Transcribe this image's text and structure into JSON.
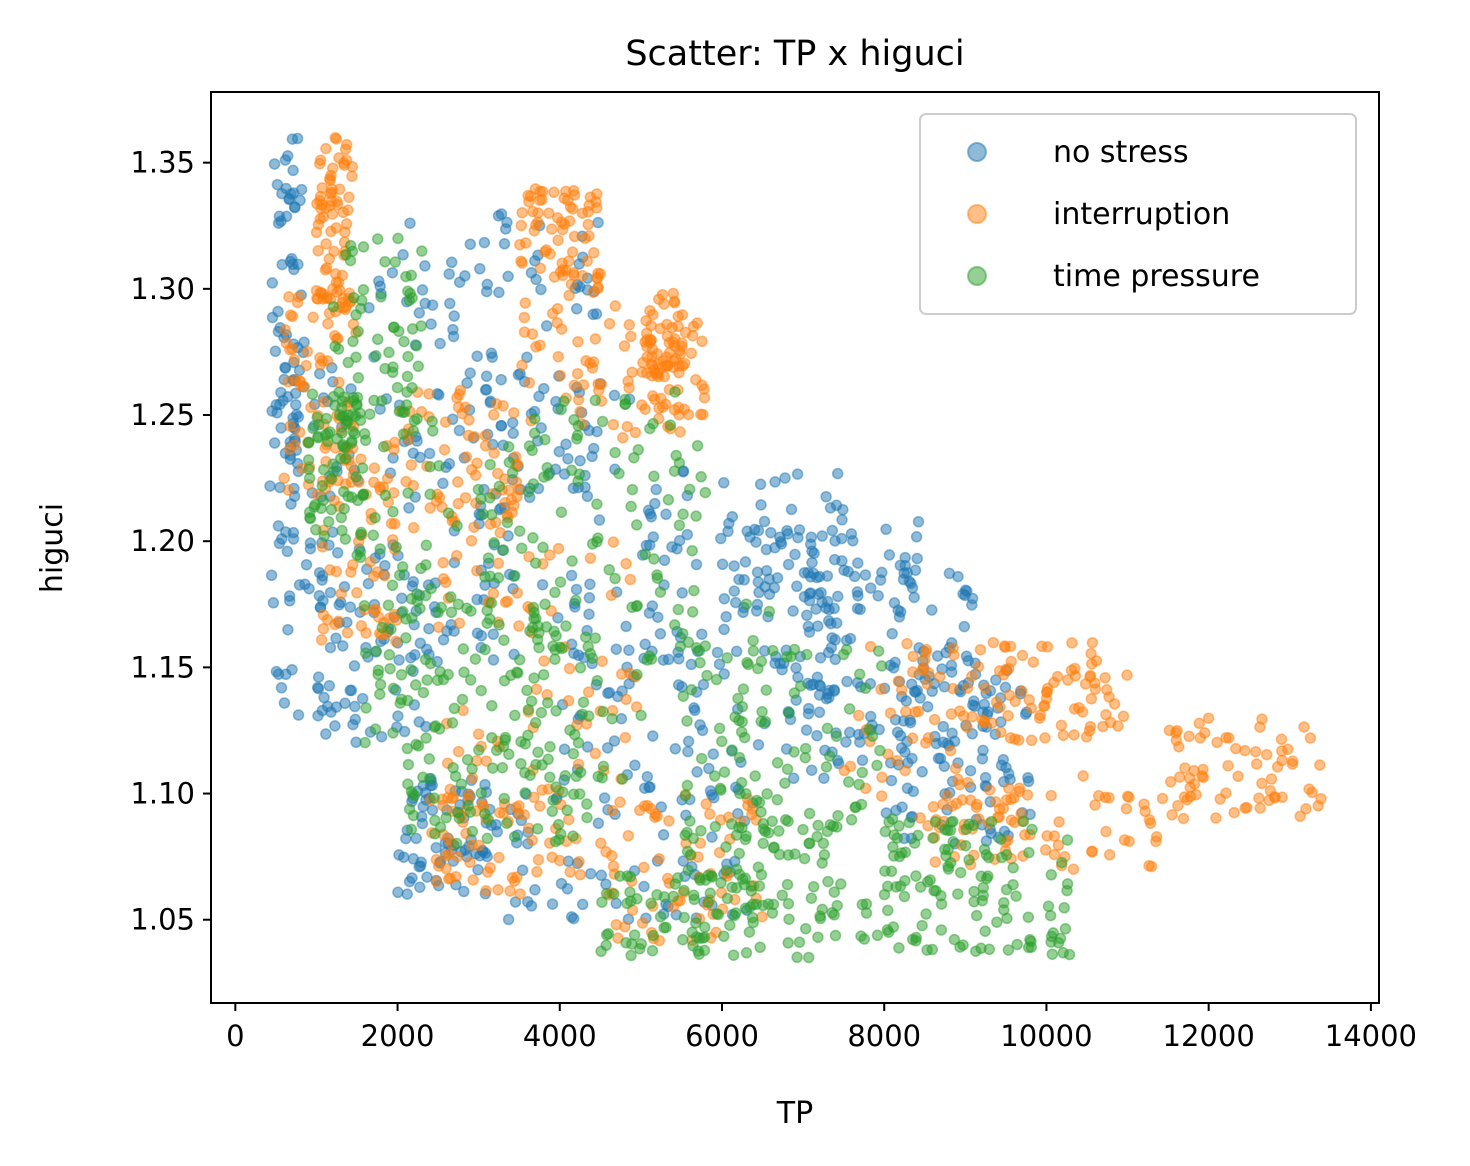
{
  "chart_data": {
    "type": "scatter",
    "title": "Scatter: TP x higuci",
    "xlabel": "TP",
    "ylabel": "higuci",
    "xlim": [
      -300,
      14100
    ],
    "ylim": [
      1.017,
      1.378
    ],
    "x_ticks": [
      0,
      2000,
      4000,
      6000,
      8000,
      10000,
      12000,
      14000
    ],
    "x_tick_labels": [
      "0",
      "2000",
      "4000",
      "6000",
      "8000",
      "10000",
      "12000",
      "14000"
    ],
    "y_ticks": [
      1.05,
      1.1,
      1.15,
      1.2,
      1.25,
      1.3,
      1.35
    ],
    "y_tick_labels": [
      "1.05",
      "1.10",
      "1.15",
      "1.20",
      "1.25",
      "1.30",
      "1.35"
    ],
    "grid": false,
    "legend_position": "top-right",
    "legend": [
      "no stress",
      "interruption",
      "time pressure"
    ],
    "series": [
      {
        "name": "no stress",
        "color": "#1f77b4",
        "regions": [
          {
            "x": [
              450,
              850
            ],
            "y": [
              1.2,
              1.36
            ]
          },
          {
            "x": [
              400,
              1500
            ],
            "y": [
              1.13,
              1.27
            ]
          },
          {
            "x": [
              1000,
              2500
            ],
            "y": [
              1.12,
              1.2
            ]
          },
          {
            "x": [
              1500,
              3500
            ],
            "y": [
              1.16,
              1.33
            ]
          },
          {
            "x": [
              2000,
              4500
            ],
            "y": [
              1.22,
              1.33
            ]
          },
          {
            "x": [
              3000,
              5500
            ],
            "y": [
              1.15,
              1.27
            ]
          },
          {
            "x": [
              5000,
              7500
            ],
            "y": [
              1.15,
              1.23
            ]
          },
          {
            "x": [
              6000,
              8500
            ],
            "y": [
              1.17,
              1.21
            ]
          },
          {
            "x": [
              7000,
              9200
            ],
            "y": [
              1.14,
              1.19
            ]
          },
          {
            "x": [
              8000,
              9800
            ],
            "y": [
              1.08,
              1.15
            ]
          },
          {
            "x": [
              2000,
              3100
            ],
            "y": [
              1.06,
              1.11
            ]
          },
          {
            "x": [
              3000,
              6500
            ],
            "y": [
              1.05,
              1.1
            ]
          },
          {
            "x": [
              4000,
              7000
            ],
            "y": [
              1.1,
              1.16
            ]
          },
          {
            "x": [
              7000,
              9500
            ],
            "y": [
              1.1,
              1.15
            ]
          }
        ]
      },
      {
        "name": "interruption",
        "color": "#ff7f0e",
        "regions": [
          {
            "x": [
              1000,
              1450
            ],
            "y": [
              1.29,
              1.36
            ]
          },
          {
            "x": [
              600,
              1500
            ],
            "y": [
              1.22,
              1.3
            ]
          },
          {
            "x": [
              1000,
              2000
            ],
            "y": [
              1.16,
              1.24
            ]
          },
          {
            "x": [
              2000,
              3500
            ],
            "y": [
              1.2,
              1.26
            ]
          },
          {
            "x": [
              3500,
              5500
            ],
            "y": [
              1.24,
              1.3
            ]
          },
          {
            "x": [
              3500,
              4500
            ],
            "y": [
              1.3,
              1.34
            ]
          },
          {
            "x": [
              5000,
              5800
            ],
            "y": [
              1.25,
              1.29
            ]
          },
          {
            "x": [
              2500,
              5000
            ],
            "y": [
              1.1,
              1.2
            ]
          },
          {
            "x": [
              2300,
              4300
            ],
            "y": [
              1.06,
              1.1
            ]
          },
          {
            "x": [
              4500,
              6500
            ],
            "y": [
              1.04,
              1.1
            ]
          },
          {
            "x": [
              7500,
              11000
            ],
            "y": [
              1.09,
              1.16
            ]
          },
          {
            "x": [
              8200,
              10800
            ],
            "y": [
              1.12,
              1.16
            ]
          },
          {
            "x": [
              8500,
              11500
            ],
            "y": [
              1.07,
              1.1
            ]
          },
          {
            "x": [
              11500,
              13400
            ],
            "y": [
              1.09,
              1.13
            ]
          }
        ]
      },
      {
        "name": "time pressure",
        "color": "#2ca02c",
        "regions": [
          {
            "x": [
              900,
              1600
            ],
            "y": [
              1.2,
              1.26
            ]
          },
          {
            "x": [
              1200,
              2300
            ],
            "y": [
              1.24,
              1.32
            ]
          },
          {
            "x": [
              1500,
              3800
            ],
            "y": [
              1.14,
              1.25
            ]
          },
          {
            "x": [
              1500,
              4500
            ],
            "y": [
              1.12,
              1.18
            ]
          },
          {
            "x": [
              3000,
              5800
            ],
            "y": [
              1.18,
              1.26
            ]
          },
          {
            "x": [
              3500,
              6700
            ],
            "y": [
              1.1,
              1.18
            ]
          },
          {
            "x": [
              5500,
              8000
            ],
            "y": [
              1.08,
              1.16
            ]
          },
          {
            "x": [
              5500,
              7500
            ],
            "y": [
              1.05,
              1.1
            ]
          },
          {
            "x": [
              2100,
              4500
            ],
            "y": [
              1.08,
              1.12
            ]
          },
          {
            "x": [
              4500,
              6500
            ],
            "y": [
              1.035,
              1.07
            ]
          },
          {
            "x": [
              6800,
              10300
            ],
            "y": [
              1.035,
              1.06
            ]
          },
          {
            "x": [
              8000,
              10300
            ],
            "y": [
              1.06,
              1.09
            ]
          }
        ]
      }
    ]
  }
}
